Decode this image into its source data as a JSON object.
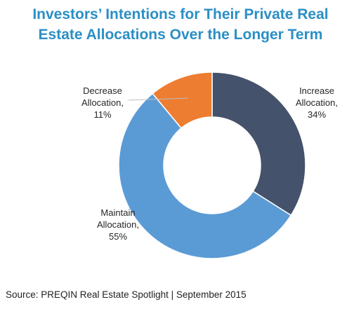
{
  "chart_data": {
    "type": "pie",
    "variant": "donut",
    "title": "Investors’ Intentions for Their Private Real\nEstate Allocations Over the Longer Term",
    "slices": [
      {
        "label_lines": [
          "Increase",
          "Allocation,",
          "34%"
        ],
        "value": 34,
        "color": "#44526b"
      },
      {
        "label_lines": [
          "Maintain",
          "Allocation,",
          "55%"
        ],
        "value": 55,
        "color": "#5b9bd5"
      },
      {
        "label_lines": [
          "Decrease",
          "Allocation,",
          "11%"
        ],
        "value": 11,
        "color": "#ed7d31"
      }
    ],
    "start_angle": "12 o'clock",
    "direction": "clockwise",
    "legend": "none"
  },
  "source": "Source: PREQIN Real Estate Spotlight | September 2015"
}
